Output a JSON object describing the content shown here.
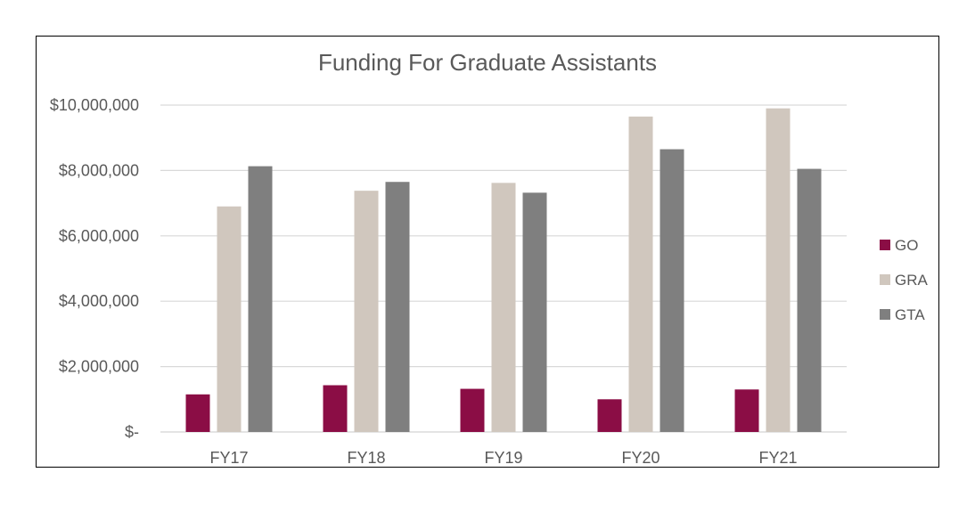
{
  "chart_data": {
    "type": "bar",
    "title": "Funding For Graduate Assistants",
    "xlabel": "",
    "ylabel": "",
    "categories": [
      "FY17",
      "FY18",
      "FY19",
      "FY20",
      "FY21"
    ],
    "series": [
      {
        "name": "GO",
        "color": "#8b0d45",
        "values": [
          1150000,
          1430000,
          1320000,
          1000000,
          1300000
        ]
      },
      {
        "name": "GRA",
        "color": "#d0c7be",
        "values": [
          6900000,
          7380000,
          7620000,
          9650000,
          9900000
        ]
      },
      {
        "name": "GTA",
        "color": "#7f7f7f",
        "values": [
          8130000,
          7650000,
          7320000,
          8650000,
          8050000
        ]
      }
    ],
    "ylim": [
      0,
      10000000
    ],
    "yticks": [
      0,
      2000000,
      4000000,
      6000000,
      8000000,
      10000000
    ],
    "ytick_labels": [
      "$-",
      "$2,000,000",
      "$4,000,000",
      "$6,000,000",
      "$8,000,000",
      "$10,000,000"
    ],
    "grid": true,
    "legend_position": "right"
  }
}
